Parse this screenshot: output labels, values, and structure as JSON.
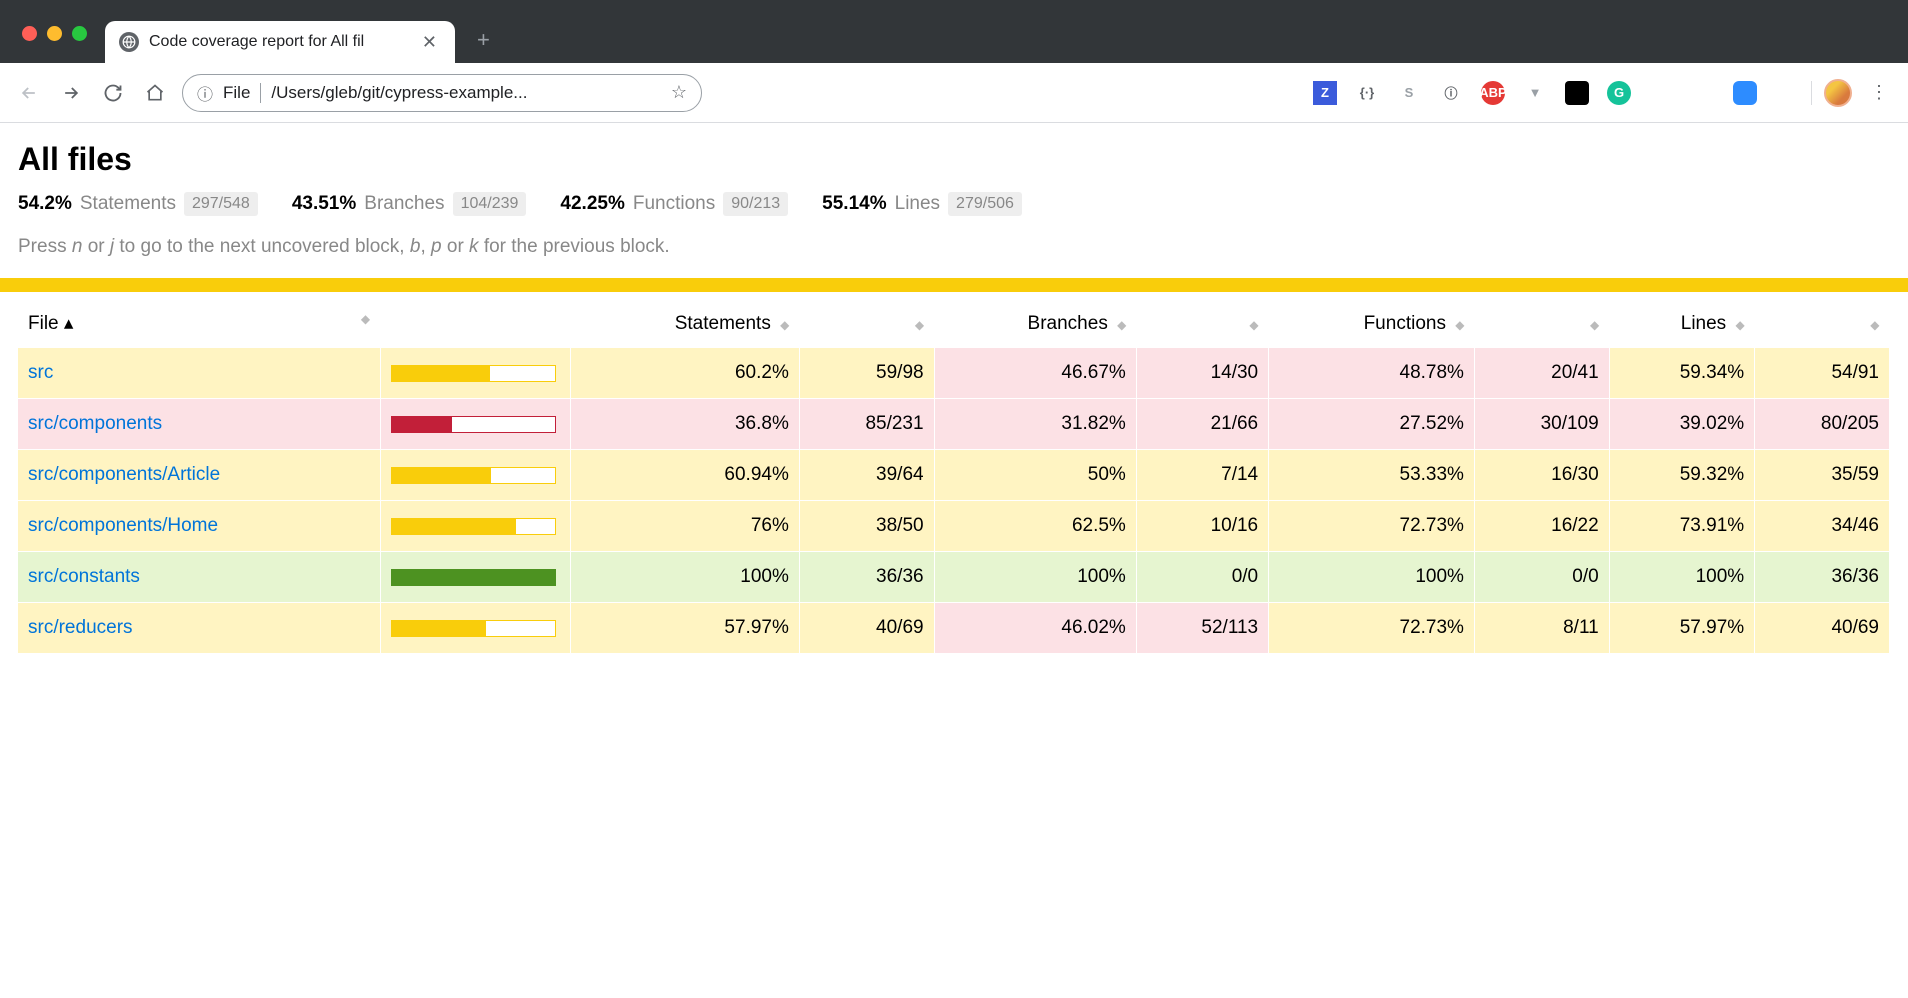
{
  "browser": {
    "tab_title": "Code coverage report for All fil",
    "url_type": "File",
    "url_path": "/Users/gleb/git/cypress-example...",
    "traffic_colors": {
      "close": "#ff5f57",
      "min": "#febc2e",
      "max": "#28c840"
    },
    "ext_icons": [
      {
        "name": "z-ext",
        "text": "Z",
        "bg": "#3b5bdb",
        "fg": "#ffffff"
      },
      {
        "name": "brackets-ext",
        "text": "{·}",
        "bg": "transparent",
        "fg": "#5f6368"
      },
      {
        "name": "s-ext",
        "text": "S",
        "bg": "transparent",
        "fg": "#9aa0a6"
      },
      {
        "name": "info-ext",
        "text": "ⓘ",
        "bg": "transparent",
        "fg": "#5f6368"
      },
      {
        "name": "abp-ext",
        "text": "ABP",
        "bg": "#e53935",
        "fg": "#ffffff",
        "radius": "50%"
      },
      {
        "name": "vue-ext",
        "text": "▼",
        "bg": "transparent",
        "fg": "#9aa0a6"
      },
      {
        "name": "kuker-ext",
        "text": "",
        "bg": "#000000",
        "fg": "#ffffff",
        "radius": "4px"
      },
      {
        "name": "grammarly-ext",
        "text": "G",
        "bg": "#15c39a",
        "fg": "#ffffff",
        "radius": "50%"
      },
      {
        "name": "feather-ext",
        "text": "",
        "bg": "transparent",
        "fg": "#4f9de8"
      },
      {
        "name": "octo-ext",
        "text": "",
        "bg": "transparent",
        "fg": "#8e8e8e"
      },
      {
        "name": "zoom-ext",
        "text": "",
        "bg": "#2d8cff",
        "fg": "#ffffff",
        "radius": "6px"
      },
      {
        "name": "camera-ext",
        "text": "",
        "bg": "transparent",
        "fg": "#9aa0a6"
      }
    ]
  },
  "page": {
    "title": "All files",
    "hint": "Press n or j to go to the next uncovered block, b, p or k for the previous block.",
    "summary": [
      {
        "pct": "54.2%",
        "label": "Statements",
        "frac": "297/548"
      },
      {
        "pct": "43.51%",
        "label": "Branches",
        "frac": "104/239"
      },
      {
        "pct": "42.25%",
        "label": "Functions",
        "frac": "90/213"
      },
      {
        "pct": "55.14%",
        "label": "Lines",
        "frac": "279/506"
      }
    ],
    "columns": [
      "File",
      "",
      "Statements",
      "",
      "Branches",
      "",
      "Functions",
      "",
      "Lines",
      ""
    ],
    "rows": [
      {
        "file": "src",
        "bar_pct": 60.2,
        "bar_level": "med",
        "cells": [
          {
            "v": "60.2%",
            "lvl": "med"
          },
          {
            "v": "59/98",
            "lvl": "med"
          },
          {
            "v": "46.67%",
            "lvl": "low"
          },
          {
            "v": "14/30",
            "lvl": "low"
          },
          {
            "v": "48.78%",
            "lvl": "low"
          },
          {
            "v": "20/41",
            "lvl": "low"
          },
          {
            "v": "59.34%",
            "lvl": "med"
          },
          {
            "v": "54/91",
            "lvl": "med"
          }
        ],
        "file_lvl": "med"
      },
      {
        "file": "src/components",
        "bar_pct": 36.8,
        "bar_level": "low",
        "cells": [
          {
            "v": "36.8%",
            "lvl": "low"
          },
          {
            "v": "85/231",
            "lvl": "low"
          },
          {
            "v": "31.82%",
            "lvl": "low"
          },
          {
            "v": "21/66",
            "lvl": "low"
          },
          {
            "v": "27.52%",
            "lvl": "low"
          },
          {
            "v": "30/109",
            "lvl": "low"
          },
          {
            "v": "39.02%",
            "lvl": "low"
          },
          {
            "v": "80/205",
            "lvl": "low"
          }
        ],
        "file_lvl": "low"
      },
      {
        "file": "src/components/Article",
        "bar_pct": 60.94,
        "bar_level": "med",
        "cells": [
          {
            "v": "60.94%",
            "lvl": "med"
          },
          {
            "v": "39/64",
            "lvl": "med"
          },
          {
            "v": "50%",
            "lvl": "med"
          },
          {
            "v": "7/14",
            "lvl": "med"
          },
          {
            "v": "53.33%",
            "lvl": "med"
          },
          {
            "v": "16/30",
            "lvl": "med"
          },
          {
            "v": "59.32%",
            "lvl": "med"
          },
          {
            "v": "35/59",
            "lvl": "med"
          }
        ],
        "file_lvl": "med"
      },
      {
        "file": "src/components/Home",
        "bar_pct": 76,
        "bar_level": "med",
        "cells": [
          {
            "v": "76%",
            "lvl": "med"
          },
          {
            "v": "38/50",
            "lvl": "med"
          },
          {
            "v": "62.5%",
            "lvl": "med"
          },
          {
            "v": "10/16",
            "lvl": "med"
          },
          {
            "v": "72.73%",
            "lvl": "med"
          },
          {
            "v": "16/22",
            "lvl": "med"
          },
          {
            "v": "73.91%",
            "lvl": "med"
          },
          {
            "v": "34/46",
            "lvl": "med"
          }
        ],
        "file_lvl": "med"
      },
      {
        "file": "src/constants",
        "bar_pct": 100,
        "bar_level": "high",
        "cells": [
          {
            "v": "100%",
            "lvl": "high"
          },
          {
            "v": "36/36",
            "lvl": "high"
          },
          {
            "v": "100%",
            "lvl": "high"
          },
          {
            "v": "0/0",
            "lvl": "high"
          },
          {
            "v": "100%",
            "lvl": "high"
          },
          {
            "v": "0/0",
            "lvl": "high"
          },
          {
            "v": "100%",
            "lvl": "high"
          },
          {
            "v": "36/36",
            "lvl": "high"
          }
        ],
        "file_lvl": "high"
      },
      {
        "file": "src/reducers",
        "bar_pct": 57.97,
        "bar_level": "med",
        "cells": [
          {
            "v": "57.97%",
            "lvl": "med"
          },
          {
            "v": "40/69",
            "lvl": "med"
          },
          {
            "v": "46.02%",
            "lvl": "low"
          },
          {
            "v": "52/113",
            "lvl": "low"
          },
          {
            "v": "72.73%",
            "lvl": "med"
          },
          {
            "v": "8/11",
            "lvl": "med"
          },
          {
            "v": "57.97%",
            "lvl": "med"
          },
          {
            "v": "40/69",
            "lvl": "med"
          }
        ],
        "file_lvl": "med"
      }
    ]
  },
  "colors": {
    "yellow_bar": "#f9cd0b",
    "low_bg": "#fce1e5",
    "med_bg": "#fff4c2",
    "high_bg": "#e6f5d0",
    "low_fg": "#c21f39",
    "med_fg": "#f9cd0b",
    "high_fg": "#4d9221",
    "link": "#0074d9"
  }
}
